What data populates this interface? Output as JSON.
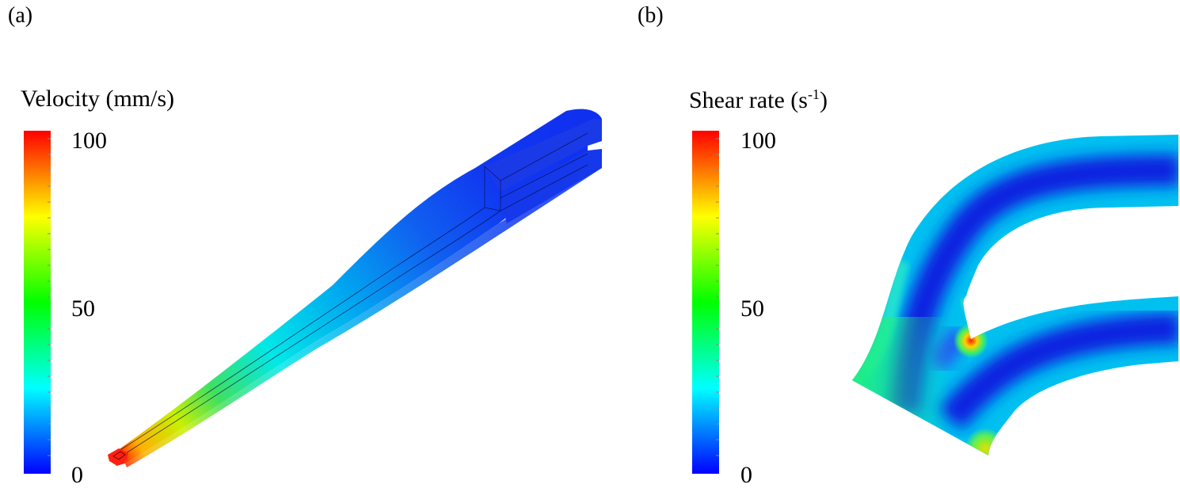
{
  "panels": [
    {
      "label": "(a)",
      "colorbar": {
        "title": "Velocity (mm/s)",
        "ticks": [
          "100",
          "50",
          "0"
        ],
        "range": [
          0,
          100
        ]
      }
    },
    {
      "label": "(b)",
      "colorbar": {
        "title_main": "Shear rate (s",
        "title_sup": "-1",
        "title_end": ")",
        "ticks": [
          "100",
          "50",
          "0"
        ],
        "range": [
          0,
          100
        ]
      }
    }
  ],
  "colormap": [
    "#0000ff",
    "#00ffff",
    "#00ff00",
    "#ffff00",
    "#ff0000"
  ]
}
